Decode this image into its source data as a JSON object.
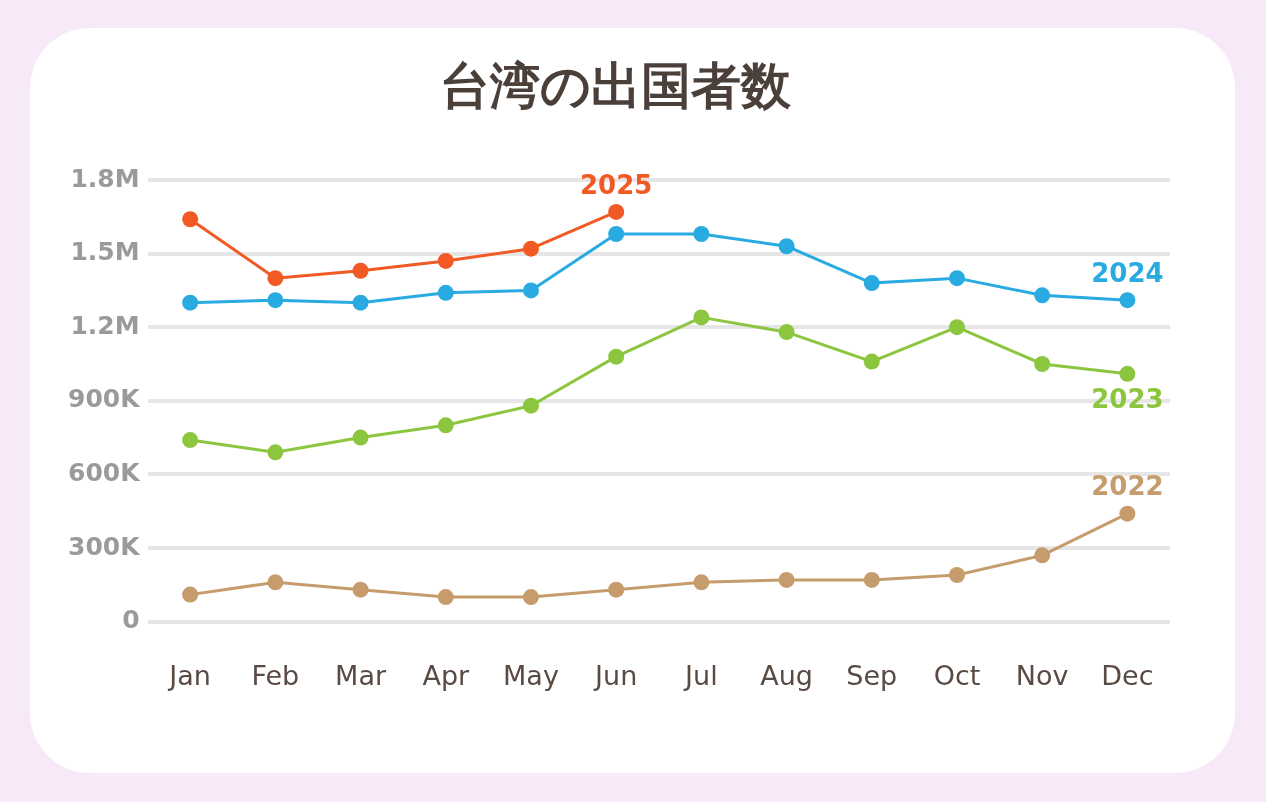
{
  "chart_data": {
    "type": "line",
    "title": "台湾の出国者数",
    "categories": [
      "Jan",
      "Feb",
      "Mar",
      "Apr",
      "May",
      "Jun",
      "Jul",
      "Aug",
      "Sep",
      "Oct",
      "Nov",
      "Dec"
    ],
    "series": [
      {
        "name": "2025",
        "color": "#f15a24",
        "values": [
          1640000,
          1400000,
          1430000,
          1470000,
          1520000,
          1670000,
          null,
          null,
          null,
          null,
          null,
          null
        ]
      },
      {
        "name": "2024",
        "color": "#29abe2",
        "values": [
          1300000,
          1310000,
          1300000,
          1340000,
          1350000,
          1580000,
          1580000,
          1530000,
          1380000,
          1400000,
          1330000,
          1310000
        ]
      },
      {
        "name": "2023",
        "color": "#8cc63f",
        "values": [
          740000,
          690000,
          750000,
          800000,
          880000,
          1080000,
          1240000,
          1180000,
          1060000,
          1200000,
          1050000,
          1010000
        ]
      },
      {
        "name": "2022",
        "color": "#c69c6d",
        "values": [
          110000,
          160000,
          130000,
          100000,
          100000,
          130000,
          160000,
          170000,
          170000,
          190000,
          270000,
          440000
        ]
      }
    ],
    "ylim": [
      0,
      1800000
    ],
    "yticks": [
      {
        "value": 0,
        "label": "0"
      },
      {
        "value": 300000,
        "label": "300K"
      },
      {
        "value": 600000,
        "label": "600K"
      },
      {
        "value": 900000,
        "label": "900K"
      },
      {
        "value": 1200000,
        "label": "1.2M"
      },
      {
        "value": 1500000,
        "label": "1.5M"
      },
      {
        "value": 1800000,
        "label": "1.8M"
      }
    ],
    "grid": "y",
    "legend": false,
    "marker": "circle",
    "line_style": "solid"
  }
}
